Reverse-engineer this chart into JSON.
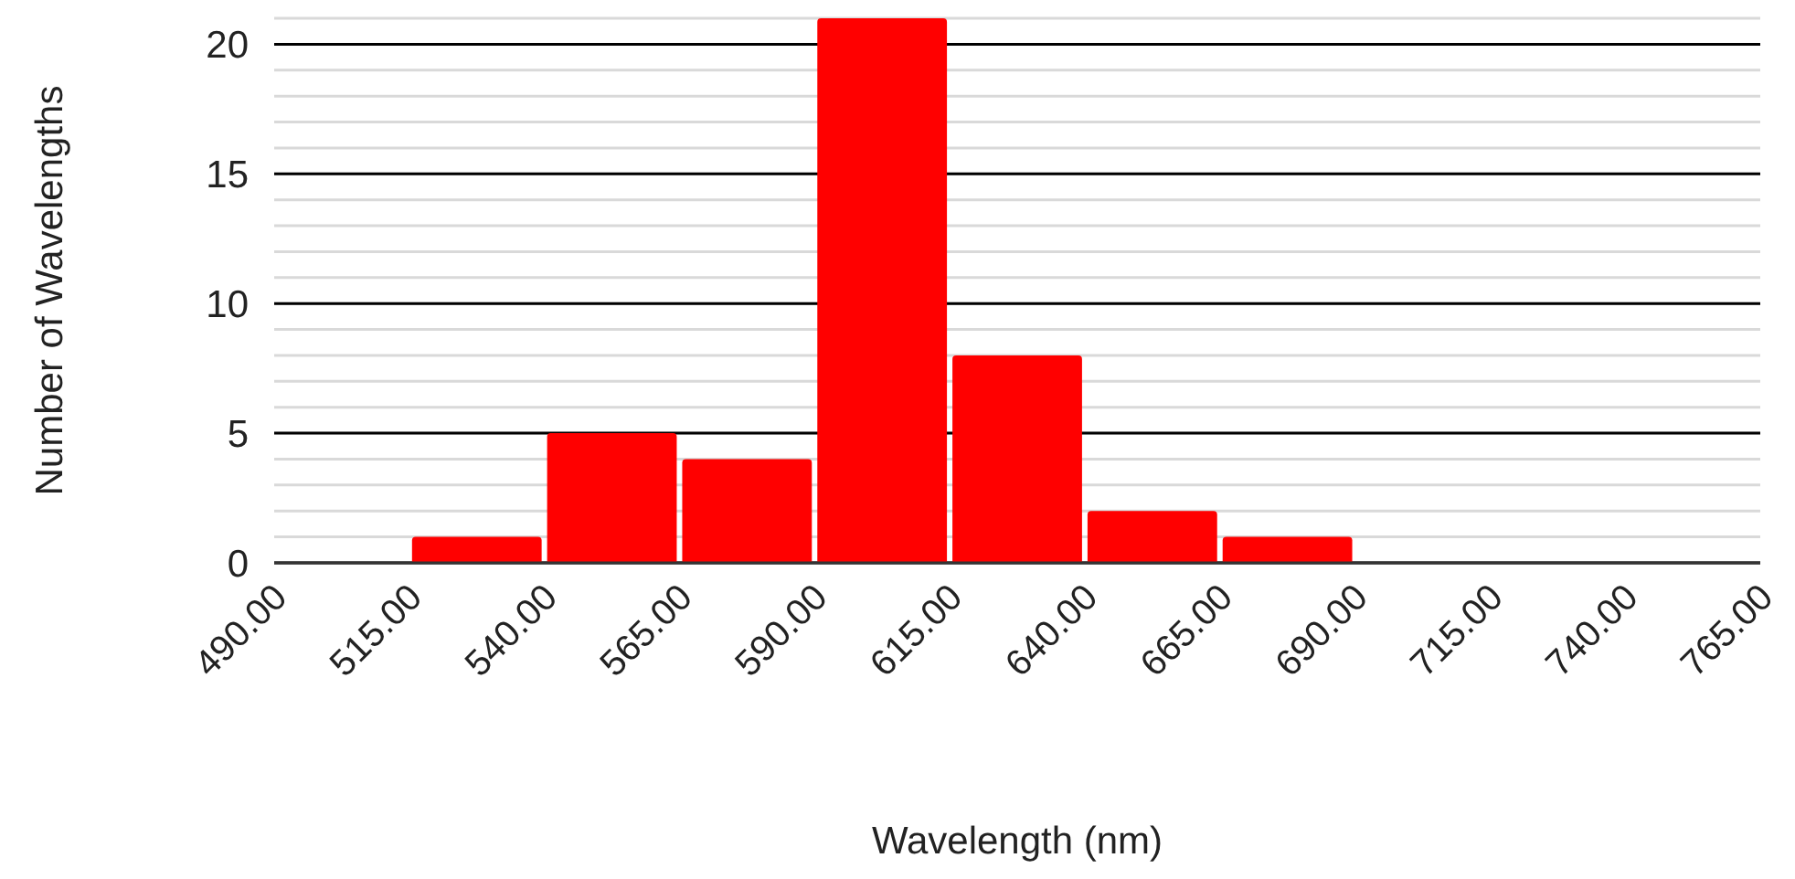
{
  "chart_data": {
    "type": "histogram",
    "xlabel": "Wavelength (nm)",
    "ylabel": "Number of Wavelengths",
    "bins": [
      490,
      515,
      540,
      565,
      590,
      615,
      640,
      665,
      690,
      715,
      740,
      765
    ],
    "values": [
      0,
      1,
      5,
      4,
      21,
      8,
      2,
      1,
      0,
      0,
      0
    ],
    "color": "#ff0000",
    "xlim": [
      490,
      765
    ],
    "xticks": [
      {
        "value": 490,
        "label": "490.00"
      },
      {
        "value": 515,
        "label": "515.00"
      },
      {
        "value": 540,
        "label": "540.00"
      },
      {
        "value": 565,
        "label": "565.00"
      },
      {
        "value": 590,
        "label": "590.00"
      },
      {
        "value": 615,
        "label": "615.00"
      },
      {
        "value": 640,
        "label": "640.00"
      },
      {
        "value": 665,
        "label": "665.00"
      },
      {
        "value": 690,
        "label": "690.00"
      },
      {
        "value": 715,
        "label": "715.00"
      },
      {
        "value": 740,
        "label": "740.00"
      },
      {
        "value": 765,
        "label": "765.00"
      }
    ],
    "ylim": [
      0,
      21
    ],
    "yticks": [
      0,
      5,
      10,
      15,
      20
    ],
    "grid": "y"
  }
}
